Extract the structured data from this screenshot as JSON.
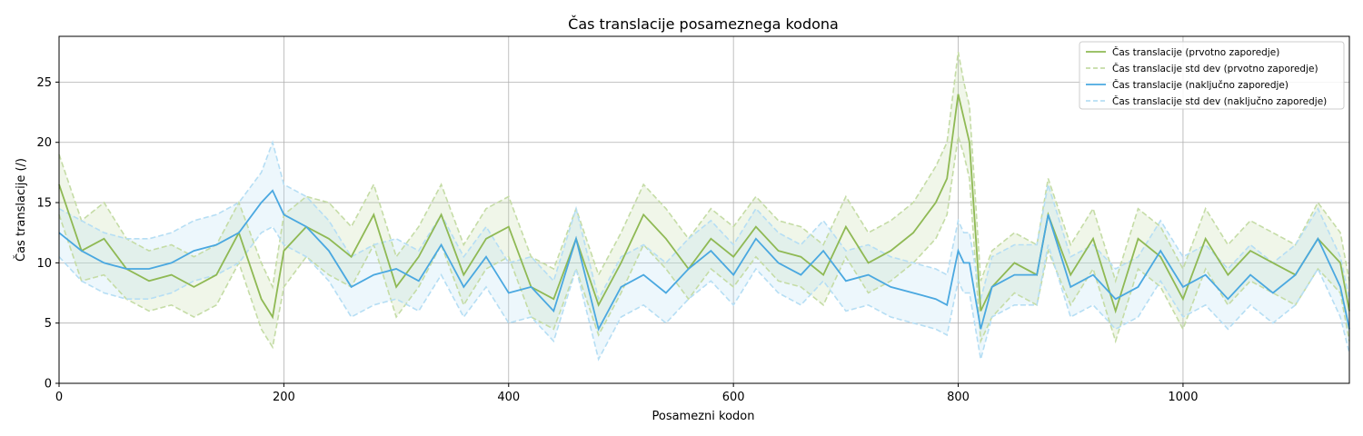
{
  "chart_data": {
    "type": "line",
    "title": "Čas translacije posameznega kodona",
    "xlabel": "Posamezni kodon",
    "ylabel": "Čas translacije (/)",
    "xlim": [
      0,
      1148
    ],
    "ylim": [
      0,
      28.8
    ],
    "xticks": [
      0,
      200,
      400,
      600,
      800,
      1000
    ],
    "yticks": [
      0,
      5,
      10,
      15,
      20,
      25
    ],
    "grid": true,
    "legend_position": "top-right",
    "series": [
      {
        "name": "Čas translacije (prvotno zaporedje)",
        "style": "solid",
        "color": "#8fb954",
        "x": [
          0,
          20,
          40,
          60,
          80,
          100,
          120,
          140,
          160,
          180,
          190,
          200,
          220,
          240,
          260,
          280,
          300,
          320,
          340,
          360,
          380,
          400,
          420,
          440,
          460,
          480,
          500,
          520,
          540,
          560,
          580,
          600,
          620,
          640,
          660,
          680,
          700,
          720,
          740,
          760,
          780,
          790,
          800,
          805,
          810,
          820,
          830,
          850,
          870,
          880,
          900,
          920,
          940,
          960,
          980,
          1000,
          1020,
          1040,
          1060,
          1080,
          1100,
          1120,
          1140,
          1148
        ],
        "y": [
          16.5,
          11,
          12,
          9.5,
          8.5,
          9,
          8,
          9,
          12.5,
          7,
          5.5,
          11,
          13,
          12,
          10.5,
          14,
          8,
          10.5,
          14,
          9,
          12,
          13,
          8,
          7,
          12,
          6.5,
          10,
          14,
          12,
          9.5,
          12,
          10.5,
          13,
          11,
          10.5,
          9,
          13,
          10,
          11,
          12.5,
          15,
          17,
          24,
          22,
          20,
          6,
          8,
          10,
          9,
          14,
          9,
          12,
          6,
          12,
          10.5,
          7,
          12,
          9,
          11,
          10,
          9,
          12,
          10,
          6
        ]
      },
      {
        "name": "Čas translacije std dev (prvotno zaporedje)",
        "style": "dashed",
        "color": "#c5dca6",
        "band": true,
        "x": [
          0,
          20,
          40,
          60,
          80,
          100,
          120,
          140,
          160,
          180,
          190,
          200,
          220,
          240,
          260,
          280,
          300,
          320,
          340,
          360,
          380,
          400,
          420,
          440,
          460,
          480,
          500,
          520,
          540,
          560,
          580,
          600,
          620,
          640,
          660,
          680,
          700,
          720,
          740,
          760,
          780,
          790,
          800,
          805,
          810,
          820,
          830,
          850,
          870,
          880,
          900,
          920,
          940,
          960,
          980,
          1000,
          1020,
          1040,
          1060,
          1080,
          1100,
          1120,
          1140,
          1148
        ],
        "upper": [
          19,
          13.5,
          15,
          12,
          11,
          11.5,
          10.5,
          11.5,
          15,
          10,
          8,
          14,
          15.5,
          15,
          13,
          16.5,
          10.5,
          13,
          16.5,
          11.5,
          14.5,
          15.5,
          10.5,
          9.5,
          14.5,
          9,
          12.5,
          16.5,
          14.5,
          12,
          14.5,
          13,
          15.5,
          13.5,
          13,
          11.5,
          15.5,
          12.5,
          13.5,
          15,
          18,
          20,
          27.5,
          25,
          23,
          8.5,
          11,
          12.5,
          11.5,
          17,
          11.5,
          14.5,
          8.5,
          14.5,
          13,
          9.5,
          14.5,
          11.5,
          13.5,
          12.5,
          11.5,
          15,
          12.5,
          8.5
        ],
        "lower": [
          14,
          8.5,
          9,
          7,
          6,
          6.5,
          5.5,
          6.5,
          10,
          4.5,
          3,
          8,
          10.5,
          9,
          8,
          11.5,
          5.5,
          8,
          11.5,
          6.5,
          9.5,
          10.5,
          5.5,
          4.5,
          9.5,
          4,
          7.5,
          11.5,
          9.5,
          7,
          9.5,
          8,
          10.5,
          8.5,
          8,
          6.5,
          10.5,
          7.5,
          8.5,
          10,
          12,
          14,
          20.5,
          19,
          17,
          3.5,
          5.5,
          7.5,
          6.5,
          11,
          6.5,
          9.5,
          3.5,
          9.5,
          8,
          4.5,
          9.5,
          6.5,
          8.5,
          7.5,
          6.5,
          9.5,
          7.5,
          3.5
        ]
      },
      {
        "name": "Čas translacije (naključno zaporedje)",
        "style": "solid",
        "color": "#4aa8e0",
        "x": [
          0,
          20,
          40,
          60,
          80,
          100,
          120,
          140,
          160,
          180,
          190,
          200,
          220,
          240,
          260,
          280,
          300,
          320,
          340,
          360,
          380,
          400,
          420,
          440,
          460,
          480,
          500,
          520,
          540,
          560,
          580,
          600,
          620,
          640,
          660,
          680,
          700,
          720,
          740,
          760,
          780,
          790,
          800,
          805,
          810,
          820,
          830,
          850,
          870,
          880,
          900,
          920,
          940,
          960,
          980,
          1000,
          1020,
          1040,
          1060,
          1080,
          1100,
          1120,
          1140,
          1148
        ],
        "y": [
          12.5,
          11,
          10,
          9.5,
          9.5,
          10,
          11,
          11.5,
          12.5,
          15,
          16,
          14,
          13,
          11,
          8,
          9,
          9.5,
          8.5,
          11.5,
          8,
          10.5,
          7.5,
          8,
          6,
          12,
          4.5,
          8,
          9,
          7.5,
          9.5,
          11,
          9,
          12,
          10,
          9,
          11,
          8.5,
          9,
          8,
          7.5,
          7,
          6.5,
          11,
          10,
          10,
          4.5,
          8,
          9,
          9,
          14,
          8,
          9,
          7,
          8,
          11,
          8,
          9,
          7,
          9,
          7.5,
          9,
          12,
          8,
          4.5
        ]
      },
      {
        "name": "Čas translacije std dev (naključno zaporedje)",
        "style": "dashed",
        "color": "#b6def4",
        "band": true,
        "x": [
          0,
          20,
          40,
          60,
          80,
          100,
          120,
          140,
          160,
          180,
          190,
          200,
          220,
          240,
          260,
          280,
          300,
          320,
          340,
          360,
          380,
          400,
          420,
          440,
          460,
          480,
          500,
          520,
          540,
          560,
          580,
          600,
          620,
          640,
          660,
          680,
          700,
          720,
          740,
          760,
          780,
          790,
          800,
          805,
          810,
          820,
          830,
          850,
          870,
          880,
          900,
          920,
          940,
          960,
          980,
          1000,
          1020,
          1040,
          1060,
          1080,
          1100,
          1120,
          1140,
          1148
        ],
        "upper": [
          14.5,
          13.5,
          12.5,
          12,
          12,
          12.5,
          13.5,
          14,
          15,
          17.5,
          20,
          16.5,
          15.5,
          13.5,
          10.5,
          11.5,
          12,
          11,
          14,
          10.5,
          13,
          10,
          10.5,
          8.5,
          14.5,
          7,
          10.5,
          11.5,
          10,
          12,
          13.5,
          11.5,
          14.5,
          12.5,
          11.5,
          13.5,
          11,
          11.5,
          10.5,
          10,
          9.5,
          9,
          13.5,
          12.5,
          12.5,
          7,
          10.5,
          11.5,
          11.5,
          16.5,
          10.5,
          11.5,
          9.5,
          10.5,
          13.5,
          10.5,
          11.5,
          9.5,
          11.5,
          10,
          11.5,
          14.5,
          10.5,
          7
        ],
        "lower": [
          10.5,
          8.5,
          7.5,
          7,
          7,
          7.5,
          8.5,
          9,
          10,
          12.5,
          13,
          11.5,
          10.5,
          8.5,
          5.5,
          6.5,
          7,
          6,
          9,
          5.5,
          8,
          5,
          5.5,
          3.5,
          9.5,
          2,
          5.5,
          6.5,
          5,
          7,
          8.5,
          6.5,
          9.5,
          7.5,
          6.5,
          8.5,
          6,
          6.5,
          5.5,
          5,
          4.5,
          4,
          8.5,
          7.5,
          7.5,
          2,
          5.5,
          6.5,
          6.5,
          11.5,
          5.5,
          6.5,
          4.5,
          5.5,
          8.5,
          5.5,
          6.5,
          4.5,
          6.5,
          5,
          6.5,
          9.5,
          5.5,
          2.5
        ]
      }
    ]
  }
}
